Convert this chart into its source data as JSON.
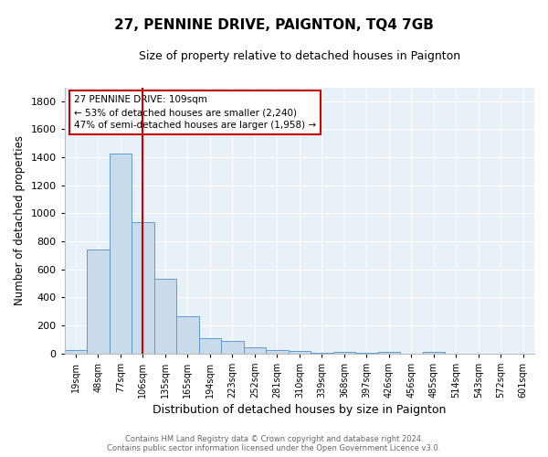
{
  "title": "27, PENNINE DRIVE, PAIGNTON, TQ4 7GB",
  "subtitle": "Size of property relative to detached houses in Paignton",
  "xlabel": "Distribution of detached houses by size in Paignton",
  "ylabel": "Number of detached properties",
  "bar_labels": [
    "19sqm",
    "48sqm",
    "77sqm",
    "106sqm",
    "135sqm",
    "165sqm",
    "194sqm",
    "223sqm",
    "252sqm",
    "281sqm",
    "310sqm",
    "339sqm",
    "368sqm",
    "397sqm",
    "426sqm",
    "456sqm",
    "485sqm",
    "514sqm",
    "543sqm",
    "572sqm",
    "601sqm"
  ],
  "bar_values": [
    20,
    740,
    1430,
    935,
    535,
    265,
    105,
    90,
    45,
    25,
    15,
    5,
    12,
    3,
    12,
    0,
    12,
    0,
    0,
    0,
    0
  ],
  "bar_color": "#c9daea",
  "bar_edge_color": "#5b9bd5",
  "vline_color": "#cc0000",
  "annotation_text": "27 PENNINE DRIVE: 109sqm\n← 53% of detached houses are smaller (2,240)\n47% of semi-detached houses are larger (1,958) →",
  "annotation_box_color": "#ffffff",
  "annotation_box_edge": "#cc0000",
  "footer_line1": "Contains HM Land Registry data © Crown copyright and database right 2024.",
  "footer_line2": "Contains public sector information licensed under the Open Government Licence v3.0.",
  "fig_bg_color": "#ffffff",
  "plot_bg_color": "#e8f0f8",
  "ylim": [
    0,
    1900
  ],
  "yticks": [
    0,
    200,
    400,
    600,
    800,
    1000,
    1200,
    1400,
    1600,
    1800
  ]
}
